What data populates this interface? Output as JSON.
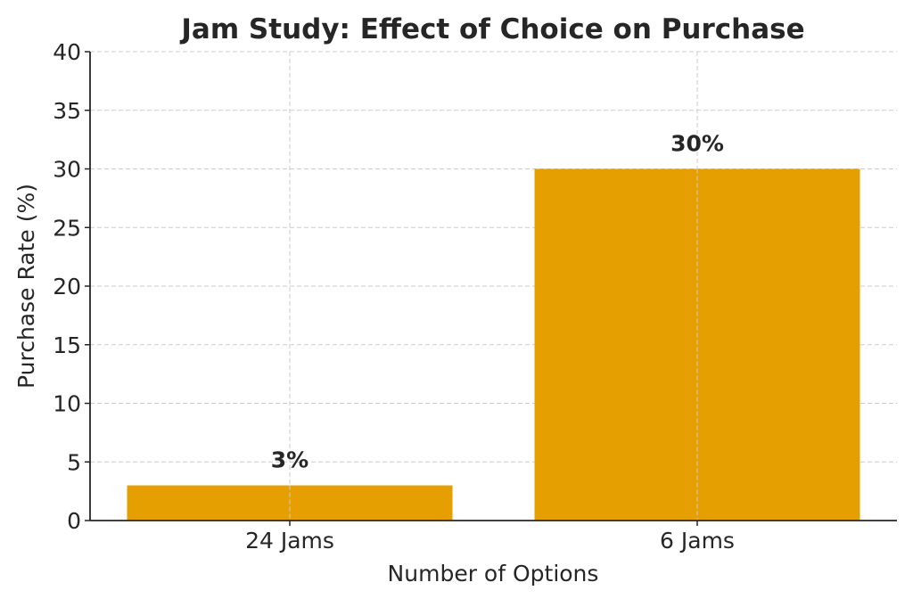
{
  "chart_data": {
    "type": "bar",
    "title": "Jam Study: Effect of Choice on Purchase",
    "xlabel": "Number of Options",
    "ylabel": "Purchase Rate (%)",
    "categories": [
      "24 Jams",
      "6 Jams"
    ],
    "values": [
      3,
      30
    ],
    "data_labels": [
      "3%",
      "30%"
    ],
    "ylim": [
      0,
      40
    ],
    "yticks": [
      0,
      5,
      10,
      15,
      20,
      25,
      30,
      35,
      40
    ],
    "grid": true,
    "bar_color": "#E69F00"
  }
}
